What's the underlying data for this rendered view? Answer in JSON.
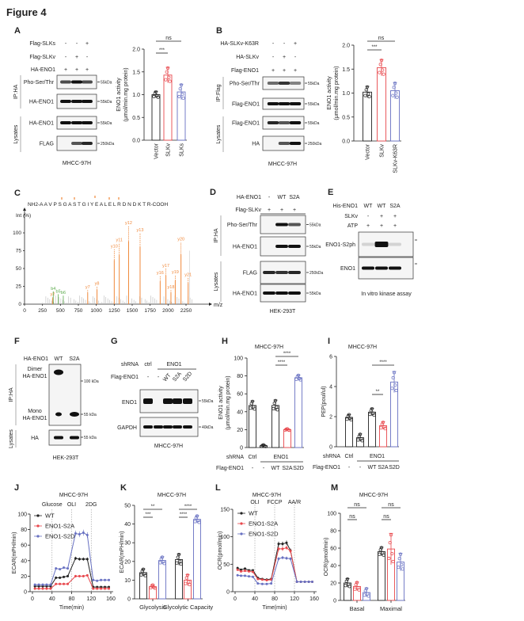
{
  "figure_title": "Figure 4",
  "panels": {
    "A": {
      "label": "A",
      "rows": [
        {
          "name": "Flag-SLKs",
          "signs": [
            "-",
            "-",
            "+"
          ]
        },
        {
          "name": "Flag-SLKv",
          "signs": [
            "-",
            "+",
            "-"
          ]
        },
        {
          "name": "HA-ENO1",
          "signs": [
            "+",
            "+",
            "+"
          ]
        }
      ],
      "ip_label": "IP:HA",
      "lysates_label": "Lysates",
      "blots": [
        "Pho-Ser/Thr",
        "HA-ENO1",
        "HA-ENO1",
        "FLAG"
      ],
      "markers": [
        "55kDa",
        "55kDa",
        "55kDa",
        "250kDa"
      ],
      "cell_line": "MHCC-97H"
    },
    "B": {
      "label": "B",
      "rows": [
        {
          "name": "HA-SLKv-K63R",
          "signs": [
            "-",
            "-",
            "+"
          ]
        },
        {
          "name": "HA-SLKv",
          "signs": [
            "-",
            "+",
            "-"
          ]
        },
        {
          "name": "Flag-ENO1",
          "signs": [
            "+",
            "+",
            "+"
          ]
        }
      ],
      "ip_label": "IP:Flag",
      "lysates_label": "Lysates",
      "blots": [
        "Pho-Ser/Thr",
        "Flag-ENO1",
        "Flag-ENO1",
        "HA"
      ],
      "markers": [
        "55kDa",
        "55kDa",
        "55kDa",
        "250kDa"
      ],
      "cell_line": "MHCC-97H"
    },
    "C": {
      "label": "C",
      "sequence": "NH2-A A V P S G A S T G I Y E A L E L R D N D K T R-COOH"
    },
    "D": {
      "label": "D",
      "rows": [
        {
          "name": "HA-ENO1",
          "signs": [
            "-",
            "WT",
            "S2A"
          ]
        },
        {
          "name": "Flag-SLKv",
          "signs": [
            "+",
            "+",
            "+"
          ]
        }
      ],
      "ip_label": "IP:HA",
      "lysates_label": "Lysates",
      "blots": [
        "Pho-Ser/Thr",
        "HA-ENO1",
        "FLAG",
        "HA-ENO1"
      ],
      "markers": [
        "55kDa",
        "55kDa",
        "250kDa",
        "55kDa"
      ],
      "cell_line": "HEK-293T"
    },
    "E": {
      "label": "E",
      "rows": [
        {
          "name": "His-ENO1",
          "signs": [
            "WT",
            "WT",
            "S2A"
          ]
        },
        {
          "name": "SLKv",
          "signs": [
            "-",
            "+",
            "+"
          ]
        },
        {
          "name": "ATP",
          "signs": [
            "+",
            "+",
            "+"
          ]
        }
      ],
      "blots": [
        "ENO1-S2ph",
        "ENO1"
      ],
      "caption": "In vitro kinase assay"
    },
    "F": {
      "label": "F",
      "rows": [
        {
          "name": "HA-ENO1",
          "signs": [
            "WT",
            "S2A"
          ]
        }
      ],
      "ip_label": "IP:HA",
      "lysates_label": "Lysates",
      "band_labels": {
        "dimer": [
          "Dimer",
          "HA-ENO1"
        ],
        "mono": [
          "Mono",
          "HA-ENO1"
        ],
        "lysate": "HA"
      },
      "markers": [
        "100 kDa",
        "55 kDa",
        "55 kDa"
      ],
      "cell_line": "HEK-293T"
    },
    "G": {
      "label": "G",
      "shrna": {
        "name": "shRNA",
        "ctrl": "ctrl",
        "group": "ENO1"
      },
      "flag": {
        "name": "Flag-ENO1",
        "signs": [
          "-",
          "-",
          "WT",
          "S2A",
          "S2D"
        ]
      },
      "blots": [
        "ENO1",
        "GAPDH"
      ],
      "markers": [
        "55kDa",
        "40kDa"
      ],
      "cell_line": "MHCC-97H"
    },
    "H": {
      "label": "H"
    },
    "I": {
      "label": "I"
    },
    "J": {
      "label": "J"
    },
    "K": {
      "label": "K"
    },
    "L": {
      "label": "L"
    },
    "M": {
      "label": "M"
    }
  },
  "colors": {
    "wt": "#222222",
    "s2a": "#e8474c",
    "s2d": "#6871c2",
    "y_ion": "#f0883a",
    "b_ion": "#5aa94a"
  },
  "chart_data": [
    {
      "panel": "A",
      "type": "bar",
      "categories": [
        "Vector",
        "SLKv",
        "SLKs"
      ],
      "values": [
        1.0,
        1.43,
        1.06
      ],
      "errors": [
        0.07,
        0.17,
        0.17
      ],
      "ylabel": "ENO1 activity",
      "ylabel2": "(μmol/min.mg protein)",
      "ylim": [
        0,
        2.0
      ],
      "yticks": [
        "0.0",
        "0.5",
        "1.0",
        "1.5",
        "2.0"
      ],
      "significance": [
        {
          "a": 0,
          "b": 1,
          "text": "***"
        },
        {
          "a": 0,
          "b": 2,
          "text": "ns"
        }
      ]
    },
    {
      "panel": "B",
      "type": "bar",
      "categories": [
        "Vector",
        "SLKv",
        "SLKv-K63R"
      ],
      "values": [
        1.02,
        1.53,
        1.05
      ],
      "errors": [
        0.12,
        0.17,
        0.17
      ],
      "ylabel": "ENO1 activity",
      "ylabel2": "(μmol/min.mg protein)",
      "ylim": [
        0,
        2.0
      ],
      "yticks": [
        "0.0",
        "0.5",
        "1.0",
        "1.5",
        "2.0"
      ],
      "significance": [
        {
          "a": 0,
          "b": 1,
          "text": "***"
        },
        {
          "a": 0,
          "b": 2,
          "text": "ns"
        }
      ]
    },
    {
      "panel": "C",
      "type": "bar",
      "xlabel": "m/z",
      "ylabel": "Int (%)",
      "xlim": [
        0,
        2450
      ],
      "ylim": [
        0,
        115
      ],
      "xticks": [
        "0",
        "250",
        "500",
        "750",
        "1000",
        "1250",
        "1500",
        "1750",
        "2000",
        "2250"
      ],
      "yticks": [
        "0",
        "25",
        "50",
        "75",
        "100"
      ],
      "y_ions": [
        {
          "mz": 390,
          "int": 10,
          "label": "y2"
        },
        {
          "mz": 880,
          "int": 20,
          "label": "y7"
        },
        {
          "mz": 1010,
          "int": 25,
          "label": "y8"
        },
        {
          "mz": 1250,
          "int": 77,
          "label": "y10"
        },
        {
          "mz": 1320,
          "int": 86,
          "label": "y11"
        },
        {
          "mz": 1450,
          "int": 110,
          "label": "y12"
        },
        {
          "mz": 1610,
          "int": 100,
          "label": "y13"
        },
        {
          "mz": 1890,
          "int": 40,
          "label": "y16"
        },
        {
          "mz": 1970,
          "int": 50,
          "label": "y17"
        },
        {
          "mz": 2040,
          "int": 20,
          "label": "y18"
        },
        {
          "mz": 2100,
          "int": 41,
          "label": "y19"
        },
        {
          "mz": 2180,
          "int": 87,
          "label": "y20"
        },
        {
          "mz": 2280,
          "int": 37,
          "label": "y21"
        }
      ],
      "b_ions": [
        {
          "mz": 400,
          "int": 18,
          "label": "b4"
        },
        {
          "mz": 470,
          "int": 14,
          "label": "b5"
        },
        {
          "mz": 540,
          "int": 12,
          "label": "b6"
        }
      ]
    },
    {
      "panel": "H",
      "type": "bar",
      "title": "MHCC-97H",
      "values": [
        47,
        2,
        47,
        20,
        78
      ],
      "errors": [
        5,
        1,
        6,
        1,
        3
      ],
      "ylabel": "ENO1 activity",
      "ylabel2": "(μmol/min.mg protein)",
      "ylim": [
        0,
        100
      ],
      "yticks": [
        "0",
        "20",
        "40",
        "60",
        "80",
        "100"
      ],
      "shrna_row": {
        "name": "shRNA",
        "ctrl": "Ctrl",
        "group": "ENO1"
      },
      "flag_row": {
        "name": "Flag-ENO1",
        "values": [
          "-",
          "-",
          "WT",
          "S2A",
          "S2D"
        ]
      },
      "significance": [
        {
          "a": 2,
          "b": 3,
          "text": "****"
        },
        {
          "a": 2,
          "b": 4,
          "text": "****"
        }
      ]
    },
    {
      "panel": "I",
      "type": "bar",
      "title": "MHCC-97H",
      "values": [
        1.95,
        0.6,
        2.3,
        1.4,
        4.3
      ],
      "errors": [
        0.2,
        0.25,
        0.25,
        0.25,
        0.7
      ],
      "ylabel": "PEP(poul/ul)",
      "ylim": [
        0,
        6
      ],
      "yticks": [
        "0",
        "2",
        "4",
        "6"
      ],
      "shrna_row": {
        "name": "shRNA",
        "ctrl": "Ctrl",
        "group": "ENO1"
      },
      "flag_row": {
        "name": "Flag-ENO1",
        "values": [
          "-",
          "-",
          "WT",
          "S2A",
          "S2D"
        ]
      },
      "significance": [
        {
          "a": 2,
          "b": 3,
          "text": "**"
        },
        {
          "a": 2,
          "b": 4,
          "text": "****"
        }
      ]
    },
    {
      "panel": "J",
      "type": "line",
      "title": "MHCC-97H",
      "xlabel": "Time(min)",
      "ylabel": "ECAR(mPH/min)",
      "xlim": [
        0,
        160
      ],
      "ylim": [
        0,
        100
      ],
      "xticks": [
        "0",
        "40",
        "80",
        "120",
        "160"
      ],
      "yticks": [
        "0",
        "20",
        "40",
        "60",
        "80",
        "100"
      ],
      "annotations": [
        {
          "x": 40,
          "text": "Glucose"
        },
        {
          "x": 80,
          "text": "OLI"
        },
        {
          "x": 120,
          "text": "2DG"
        }
      ],
      "x": [
        5,
        13,
        21,
        29,
        37,
        48,
        56,
        64,
        72,
        88,
        96,
        104,
        112,
        124,
        132,
        140,
        148,
        156
      ],
      "series": [
        {
          "name": "WT",
          "values": [
            7,
            7,
            7,
            7,
            7,
            18,
            18,
            19,
            20,
            43,
            42,
            42,
            42,
            6,
            6,
            6,
            6,
            6
          ]
        },
        {
          "name": "ENO1-S2A",
          "values": [
            4,
            4,
            4,
            4,
            4,
            10,
            10,
            10,
            10,
            20,
            20,
            20,
            21,
            4,
            4,
            4,
            4,
            4
          ]
        },
        {
          "name": "ENO1-S2D",
          "values": [
            9,
            9,
            9,
            9,
            9,
            30,
            29,
            31,
            30,
            75,
            74,
            76,
            73,
            15,
            14,
            15,
            15,
            15
          ]
        }
      ]
    },
    {
      "panel": "K",
      "type": "bar",
      "title": "MHCC-97H",
      "groups": [
        "Glycolysis",
        "Glycolytic Capacity"
      ],
      "ylabel": "ECAR(mPH/min)",
      "ylim": [
        0,
        50
      ],
      "yticks": [
        "0",
        "10",
        "20",
        "30",
        "40",
        "50"
      ],
      "series": [
        {
          "values": [
            14,
            21
          ],
          "errors": [
            2,
            3
          ]
        },
        {
          "values": [
            6.5,
            10
          ],
          "errors": [
            1,
            3
          ]
        },
        {
          "values": [
            20.5,
            42.5
          ],
          "errors": [
            2,
            2
          ]
        }
      ],
      "significance": [
        {
          "a": 0,
          "b": 1,
          "text": "***"
        },
        {
          "a": 0,
          "b": 2,
          "text": "**"
        },
        {
          "a": 3,
          "b": 4,
          "text": "****"
        },
        {
          "a": 3,
          "b": 5,
          "text": "****"
        }
      ]
    },
    {
      "panel": "L",
      "type": "line",
      "title": "MHCC-97H",
      "xlabel": "Time(min)",
      "ylabel": "OCR(pmol/min)",
      "xlim": [
        0,
        160
      ],
      "ylim": [
        0,
        150
      ],
      "xticks": [
        "0",
        "40",
        "80",
        "120",
        "160"
      ],
      "yticks": [
        "0",
        "50",
        "100",
        "150"
      ],
      "annotations": [
        {
          "x": 40,
          "text": "OLI"
        },
        {
          "x": 80,
          "text": "FCCP"
        },
        {
          "x": 120,
          "text": "AA/R"
        }
      ],
      "x": [
        5,
        12,
        20,
        28,
        36,
        46,
        55,
        64,
        73,
        88,
        96,
        104,
        112,
        125,
        133,
        141,
        149,
        156
      ],
      "series": [
        {
          "name": "WT",
          "values": [
            43,
            40,
            42,
            39,
            39,
            25,
            23,
            22,
            23,
            87,
            87,
            89,
            75,
            18,
            18,
            18,
            18,
            18
          ]
        },
        {
          "name": "ENO1-S2A",
          "values": [
            40,
            37,
            38,
            37,
            36,
            23,
            22,
            21,
            22,
            78,
            78,
            80,
            74,
            18,
            18,
            18,
            18,
            18
          ]
        },
        {
          "name": "ENO1-S2D",
          "values": [
            30,
            29,
            29,
            28,
            27,
            15,
            14,
            14,
            15,
            60,
            62,
            61,
            60,
            18,
            18,
            18,
            18,
            18
          ]
        }
      ]
    },
    {
      "panel": "M",
      "type": "bar",
      "title": "MHCC-97H",
      "groups": [
        "Basal",
        "Maximal"
      ],
      "ylabel": "OCR(pmol/min)",
      "ylim": [
        0,
        100
      ],
      "yticks": [
        "0",
        "20",
        "40",
        "60",
        "80",
        "100"
      ],
      "series": [
        {
          "values": [
            20,
            56
          ],
          "errors": [
            5,
            5
          ]
        },
        {
          "values": [
            16,
            59
          ],
          "errors": [
            5,
            18
          ]
        },
        {
          "values": [
            9,
            44
          ],
          "errors": [
            5,
            10
          ]
        }
      ],
      "significance": [
        {
          "a": 0,
          "b": 1,
          "text": "ns"
        },
        {
          "a": 0,
          "b": 2,
          "text": "ns"
        },
        {
          "a": 3,
          "b": 4,
          "text": "ns"
        },
        {
          "a": 3,
          "b": 5,
          "text": "ns"
        }
      ]
    }
  ]
}
